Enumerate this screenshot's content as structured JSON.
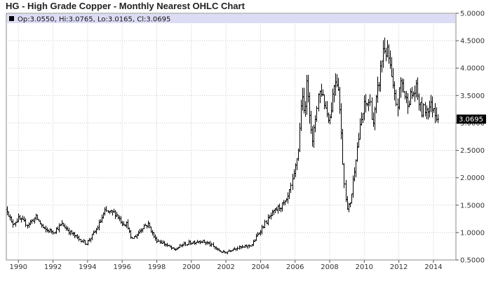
{
  "chart_data": {
    "type": "ohlc",
    "title": "HG - High Grade Copper - Monthly Nearest OHLC Chart",
    "info": {
      "open_label": "Op:",
      "open": "3.0550",
      "high_label": "Hi:",
      "high": "3.0765",
      "low_label": "Lo:",
      "low": "3.0165",
      "close_label": "Cl:",
      "close": "3.0695"
    },
    "last_price": "3.0695",
    "xlim": [
      1989.3,
      2015.3
    ],
    "ylim": [
      0.5,
      5.0
    ],
    "x_ticks": [
      "1990",
      "1992",
      "1994",
      "1996",
      "1998",
      "2000",
      "2002",
      "2004",
      "2006",
      "2008",
      "2010",
      "2012",
      "2014"
    ],
    "y_ticks": [
      "0.5000",
      "1.0000",
      "1.5000",
      "2.0000",
      "2.5000",
      "3.0000",
      "3.5000",
      "4.0000",
      "4.5000",
      "5.0000"
    ],
    "grid": true,
    "colors": {
      "bars": "#000000",
      "grid": "#c8c8c8",
      "info_bg": "#dcdcf5",
      "last_badge": "#000000"
    },
    "price_path": [
      [
        1989.33,
        1.42
      ],
      [
        1989.6,
        1.15
      ],
      [
        1990.0,
        1.25
      ],
      [
        1990.5,
        1.15
      ],
      [
        1991.0,
        1.28
      ],
      [
        1991.5,
        1.05
      ],
      [
        1992.0,
        1.02
      ],
      [
        1992.5,
        1.15
      ],
      [
        1993.0,
        1.0
      ],
      [
        1993.5,
        0.88
      ],
      [
        1993.9,
        0.8
      ],
      [
        1994.5,
        1.05
      ],
      [
        1995.0,
        1.38
      ],
      [
        1995.6,
        1.35
      ],
      [
        1996.0,
        1.18
      ],
      [
        1996.3,
        1.15
      ],
      [
        1996.5,
        0.88
      ],
      [
        1996.8,
        0.95
      ],
      [
        1997.2,
        1.12
      ],
      [
        1997.5,
        1.15
      ],
      [
        1997.9,
        0.88
      ],
      [
        1998.5,
        0.78
      ],
      [
        1999.0,
        0.68
      ],
      [
        1999.5,
        0.78
      ],
      [
        2000.0,
        0.82
      ],
      [
        2000.5,
        0.85
      ],
      [
        2001.0,
        0.8
      ],
      [
        2001.5,
        0.68
      ],
      [
        2001.9,
        0.63
      ],
      [
        2002.5,
        0.72
      ],
      [
        2003.0,
        0.73
      ],
      [
        2003.5,
        0.78
      ],
      [
        2004.0,
        1.05
      ],
      [
        2004.5,
        1.28
      ],
      [
        2005.0,
        1.45
      ],
      [
        2005.5,
        1.55
      ],
      [
        2005.9,
        2.0
      ],
      [
        2006.2,
        2.6
      ],
      [
        2006.35,
        3.5
      ],
      [
        2006.5,
        3.2
      ],
      [
        2006.7,
        3.75
      ],
      [
        2007.0,
        2.6
      ],
      [
        2007.3,
        3.5
      ],
      [
        2007.5,
        3.6
      ],
      [
        2007.8,
        3.2
      ],
      [
        2008.0,
        3.1
      ],
      [
        2008.3,
        3.85
      ],
      [
        2008.5,
        3.7
      ],
      [
        2008.8,
        2.0
      ],
      [
        2009.0,
        1.4
      ],
      [
        2009.2,
        1.6
      ],
      [
        2009.5,
        2.4
      ],
      [
        2009.8,
        3.0
      ],
      [
        2010.0,
        3.3
      ],
      [
        2010.3,
        3.4
      ],
      [
        2010.5,
        3.0
      ],
      [
        2010.8,
        3.7
      ],
      [
        2011.1,
        4.4
      ],
      [
        2011.4,
        4.2
      ],
      [
        2011.7,
        3.5
      ],
      [
        2011.9,
        3.3
      ],
      [
        2012.1,
        3.8
      ],
      [
        2012.4,
        3.4
      ],
      [
        2012.6,
        3.45
      ],
      [
        2013.0,
        3.6
      ],
      [
        2013.3,
        3.2
      ],
      [
        2013.7,
        3.3
      ],
      [
        2014.0,
        3.3
      ],
      [
        2014.25,
        3.05
      ]
    ]
  }
}
